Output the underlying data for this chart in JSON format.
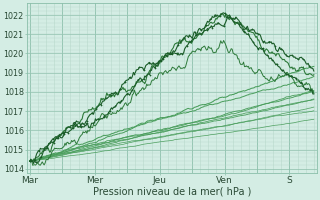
{
  "xlabel": "Pression niveau de la mer( hPa )",
  "bg_color": "#d4ede4",
  "grid_color_major": "#8bbfaa",
  "grid_color_minor": "#b8d8cc",
  "line_color_dark": "#1a5c28",
  "line_color_mid": "#2d7a3a",
  "line_color_light": "#4a9e5c",
  "x_ticks": [
    0,
    48,
    96,
    144,
    192
  ],
  "x_tick_labels": [
    "Mar",
    "Mer",
    "Jeu",
    "Ven",
    "S"
  ],
  "ylim": [
    1013.8,
    1022.6
  ],
  "xlim": [
    -2,
    212
  ],
  "yticks": [
    1014,
    1015,
    1016,
    1017,
    1018,
    1019,
    1020,
    1021,
    1022
  ]
}
